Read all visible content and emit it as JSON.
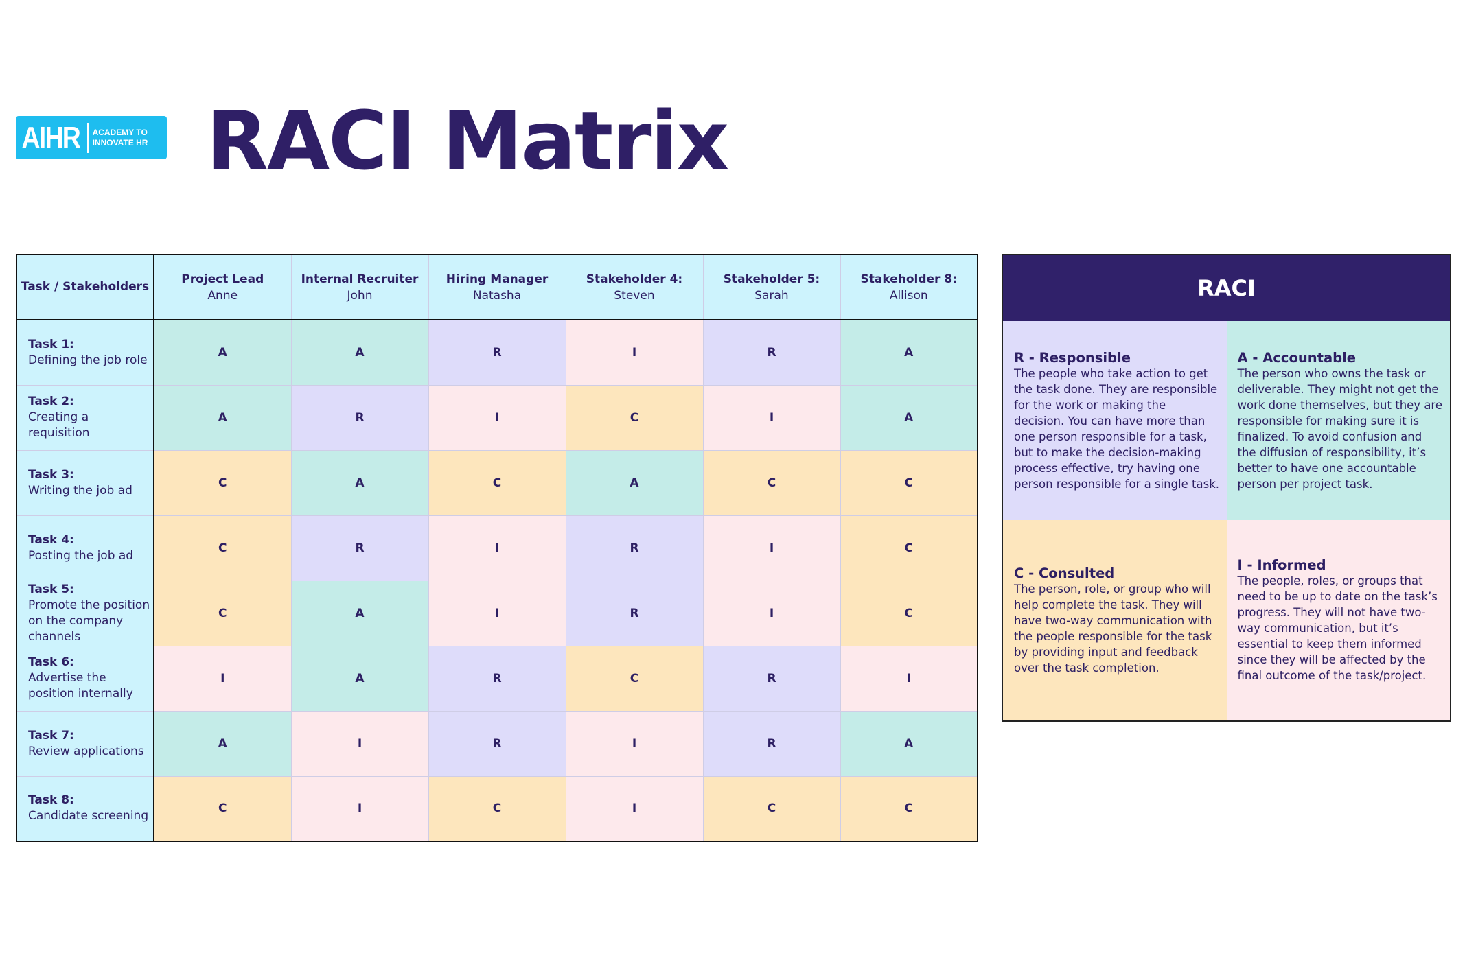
{
  "logo": {
    "mark": "AIHR",
    "line1": "ACADEMY TO",
    "line2": "INNOVATE HR"
  },
  "title": "RACI Matrix",
  "matrix": {
    "corner": "Task / Stakeholders",
    "stakeholders": [
      {
        "role": "Project Lead",
        "name": "Anne"
      },
      {
        "role": "Internal Recruiter",
        "name": "John"
      },
      {
        "role": "Hiring Manager",
        "name": "Natasha"
      },
      {
        "role": "Stakeholder 4:",
        "name": "Steven"
      },
      {
        "role": "Stakeholder 5:",
        "name": "Sarah"
      },
      {
        "role": "Stakeholder 8:",
        "name": "Allison"
      }
    ],
    "tasks": [
      {
        "label": "Task 1:",
        "desc": "Defining the job role",
        "values": [
          "A",
          "A",
          "R",
          "I",
          "R",
          "A"
        ]
      },
      {
        "label": "Task 2:",
        "desc": "Creating a requisition",
        "values": [
          "A",
          "R",
          "I",
          "C",
          "I",
          "A"
        ]
      },
      {
        "label": "Task 3:",
        "desc": "Writing the job ad",
        "values": [
          "C",
          "A",
          "C",
          "A",
          "C",
          "C"
        ]
      },
      {
        "label": "Task 4:",
        "desc": "Posting the job ad",
        "values": [
          "C",
          "R",
          "I",
          "R",
          "I",
          "C"
        ]
      },
      {
        "label": "Task 5:",
        "desc": "Promote the position on the company channels",
        "values": [
          "C",
          "A",
          "I",
          "R",
          "I",
          "C"
        ]
      },
      {
        "label": "Task 6:",
        "desc": "Advertise the position internally",
        "values": [
          "I",
          "A",
          "R",
          "C",
          "R",
          "I"
        ]
      },
      {
        "label": "Task 7:",
        "desc": "Review applications",
        "values": [
          "A",
          "I",
          "R",
          "I",
          "R",
          "A"
        ]
      },
      {
        "label": "Task 8:",
        "desc": "Candidate screening",
        "values": [
          "C",
          "I",
          "C",
          "I",
          "C",
          "C"
        ]
      }
    ]
  },
  "colors": {
    "R": "#dedcfa",
    "A": "#c4ece8",
    "C": "#fde6bd",
    "I": "#fde9ec",
    "header": "#cdf3fd",
    "navy": "#30216a"
  },
  "legend": {
    "title": "RACI",
    "R": {
      "heading": "R - Responsible",
      "text": "The people who take action to get the task done. They are responsible for the work or making the decision. You can have more than one person responsible for a task, but to make the decision-making process effective, try having one person responsible for a single task."
    },
    "A": {
      "heading": "A - Accountable",
      "text": "The person who owns the task or deliverable. They might not get the work done themselves, but they are responsible for making sure it is finalized. To avoid confusion and the diffusion of responsibility, it’s better to have one accountable person per project task."
    },
    "C": {
      "heading": "C - Consulted",
      "text": "The person, role, or group who will help complete the task. They will have two-way communication with the people responsible for the task by providing input and feedback over the task completion."
    },
    "I": {
      "heading": "I - Informed",
      "text": "The people, roles, or groups that need to be up to date on the task’s progress. They will not have two-way communication, but it’s essential to keep them informed since they will be affected by the final outcome of the task/project."
    }
  }
}
